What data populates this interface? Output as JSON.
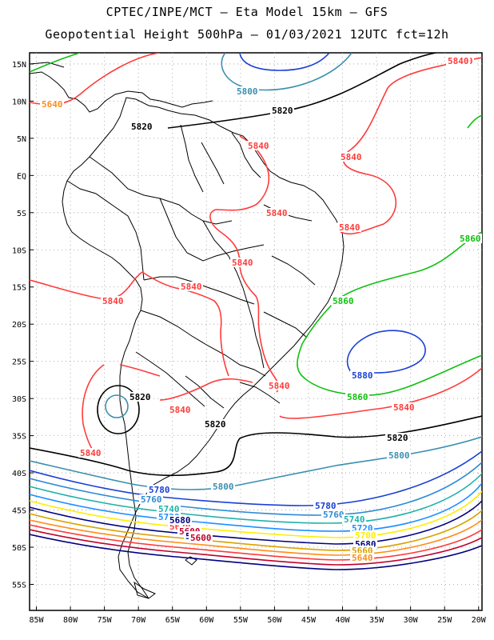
{
  "header": {
    "line1": "CPTEC/INPE/MCT –  Eta Model 15km – GFS",
    "line2": "Geopotential Height 500hPa – 01/03/2021 12UTC fct=12h"
  },
  "map": {
    "lon_labels": [
      "85W",
      "80W",
      "75W",
      "70W",
      "65W",
      "60W",
      "55W",
      "50W",
      "45W",
      "40W",
      "35W",
      "30W",
      "25W",
      "20W"
    ],
    "lon_values": [
      -85,
      -80,
      -75,
      -70,
      -65,
      -60,
      -55,
      -50,
      -45,
      -40,
      -35,
      -30,
      -25,
      -20
    ],
    "lat_labels": [
      "15N",
      "10N",
      "5N",
      "EQ",
      "5S",
      "10S",
      "15S",
      "20S",
      "25S",
      "30S",
      "35S",
      "40S",
      "45S",
      "50S",
      "55S"
    ],
    "lat_values": [
      15,
      10,
      5,
      0,
      -5,
      -10,
      -15,
      -20,
      -25,
      -30,
      -35,
      -40,
      -45,
      -50,
      -55
    ],
    "extent": {
      "lon_min": -86,
      "lon_max": -19.5,
      "lat_min": -58.5,
      "lat_max": 16.5
    }
  },
  "contour_colors": {
    "5580": "#000080",
    "5600": "#c0002e",
    "5620": "#ff3b3b",
    "5640": "#ff8c1a",
    "5660": "#d9a300",
    "5680": "#000080",
    "5700": "#ffee00",
    "5720": "#1e90ff",
    "5740": "#20b2aa",
    "5760": "#2e8bd6",
    "5780": "#1a3fd6",
    "5800": "#3a8fb0",
    "5820": "#000000",
    "5840": "#ff3b3b",
    "5860": "#10c010",
    "5880": "#1a3fd6"
  },
  "contour_labels": [
    {
      "text": "5840",
      "color": "5840"
    },
    {
      "text": "5800",
      "color": "5800"
    },
    {
      "text": "5820",
      "color": "5820"
    },
    {
      "text": "5820",
      "color": "5820"
    },
    {
      "text": "5840",
      "color": "5840"
    },
    {
      "text": "5840",
      "color": "5840"
    },
    {
      "text": "5840",
      "color": "5840"
    },
    {
      "text": "5840",
      "color": "5840"
    },
    {
      "text": "5840",
      "color": "5840"
    },
    {
      "text": "5860",
      "color": "5860"
    },
    {
      "text": "5840",
      "color": "5840"
    },
    {
      "text": "5840",
      "color": "5840"
    },
    {
      "text": "5840",
      "color": "5840"
    },
    {
      "text": "5860",
      "color": "5860"
    },
    {
      "text": "5880",
      "color": "5880"
    },
    {
      "text": "5860",
      "color": "5860"
    },
    {
      "text": "5840",
      "color": "5840"
    },
    {
      "text": "5820",
      "color": "5820"
    },
    {
      "text": "5840",
      "color": "5840"
    },
    {
      "text": "5840",
      "color": "5840"
    },
    {
      "text": "5820",
      "color": "5820"
    },
    {
      "text": "5840",
      "color": "5840"
    },
    {
      "text": "5820",
      "color": "5820"
    },
    {
      "text": "5800",
      "color": "5800"
    },
    {
      "text": "5800",
      "color": "5800"
    },
    {
      "text": "5780",
      "color": "5780"
    },
    {
      "text": "5760",
      "color": "5760"
    },
    {
      "text": "5740",
      "color": "5740"
    },
    {
      "text": "5720",
      "color": "5720"
    },
    {
      "text": "5780",
      "color": "5780"
    },
    {
      "text": "5760",
      "color": "5760"
    },
    {
      "text": "5740",
      "color": "5740"
    },
    {
      "text": "5720",
      "color": "5720"
    },
    {
      "text": "5700",
      "color": "5700"
    },
    {
      "text": "5680",
      "color": "5680"
    },
    {
      "text": "5660",
      "color": "5660"
    },
    {
      "text": "5640",
      "color": "5640"
    },
    {
      "text": "5620",
      "color": "5620"
    },
    {
      "text": "5600",
      "color": "5600"
    },
    {
      "text": "5580",
      "color": "5580"
    },
    {
      "text": "5680",
      "color": "5680"
    },
    {
      "text": "5640",
      "color": "5640"
    },
    {
      "text": "5600",
      "color": "5600"
    }
  ]
}
